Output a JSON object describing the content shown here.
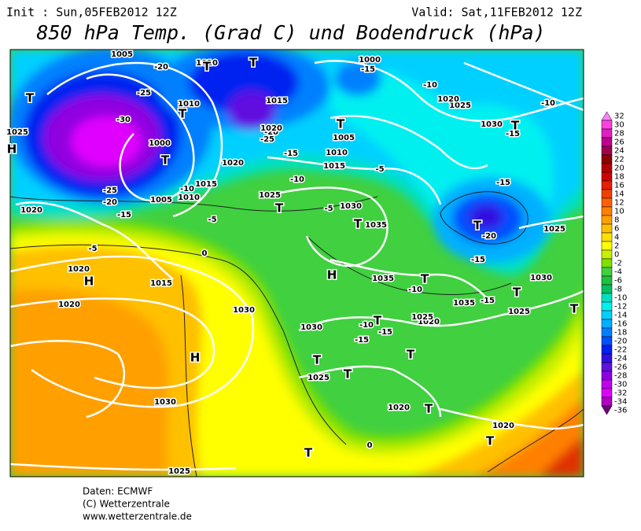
{
  "header": {
    "init": "Init : Sun,05FEB2012 12Z",
    "valid": "Valid: Sat,11FEB2012 12Z",
    "title": "850 hPa Temp. (Grad C) und Bodendruck (hPa)"
  },
  "colorbar": {
    "levels": [
      32,
      30,
      28,
      26,
      24,
      22,
      20,
      18,
      16,
      14,
      12,
      10,
      8,
      6,
      4,
      2,
      0,
      -2,
      -4,
      -6,
      -8,
      -10,
      -12,
      -14,
      -16,
      -18,
      -20,
      -22,
      -24,
      -26,
      -28,
      -30,
      -32,
      -34,
      -36
    ],
    "colors": [
      "#ff80ff",
      "#ff40e0",
      "#e020c0",
      "#c00090",
      "#a00050",
      "#8c0000",
      "#b40000",
      "#d20000",
      "#e62000",
      "#f04000",
      "#ff6000",
      "#ff8000",
      "#ffa000",
      "#ffc000",
      "#ffe000",
      "#ffff00",
      "#c8f000",
      "#80e000",
      "#40d040",
      "#20c040",
      "#00c060",
      "#00e0c0",
      "#00f0f0",
      "#00d0ff",
      "#00b0ff",
      "#0080ff",
      "#0050ff",
      "#0020f0",
      "#3010e0",
      "#6010e0",
      "#9000e0",
      "#c000f0",
      "#e000ff",
      "#b000c0",
      "#700080"
    ]
  },
  "map": {
    "labels": [
      "-20",
      "-25",
      "-30",
      "-25",
      "-20",
      "-15",
      "-10",
      "-5",
      "0",
      "-5",
      "-15",
      "-10",
      "-5",
      "-5",
      "-15",
      "-10",
      "-10",
      "-15",
      "-15",
      "-20",
      "-15",
      "-10",
      "-15",
      "-10",
      "-15",
      "-15",
      "0",
      "-20",
      "-25",
      "1005",
      "1010",
      "1025",
      "1000",
      "1010",
      "1005",
      "1010",
      "1015",
      "1020",
      "1020",
      "1015",
      "1020",
      "1030",
      "1030",
      "1025",
      "1030",
      "1025",
      "1020",
      "1035",
      "1030",
      "1025",
      "1035",
      "1015",
      "1010",
      "1005",
      "1000",
      "1020",
      "1015",
      "1030",
      "1025",
      "1020",
      "1030",
      "1025",
      "1035",
      "1020",
      "1025",
      "1020",
      "1025",
      "1020",
      "T",
      "T",
      "T",
      "T",
      "T",
      "T",
      "T",
      "T",
      "T",
      "T",
      "T",
      "T",
      "T",
      "T",
      "T",
      "T",
      "T",
      "T",
      "T",
      "T",
      "H",
      "H",
      "H",
      "H"
    ]
  },
  "footer": {
    "lines": [
      "Daten: ECMWF",
      "(C) Wetterzentrale",
      "www.wetterzentrale.de"
    ]
  }
}
